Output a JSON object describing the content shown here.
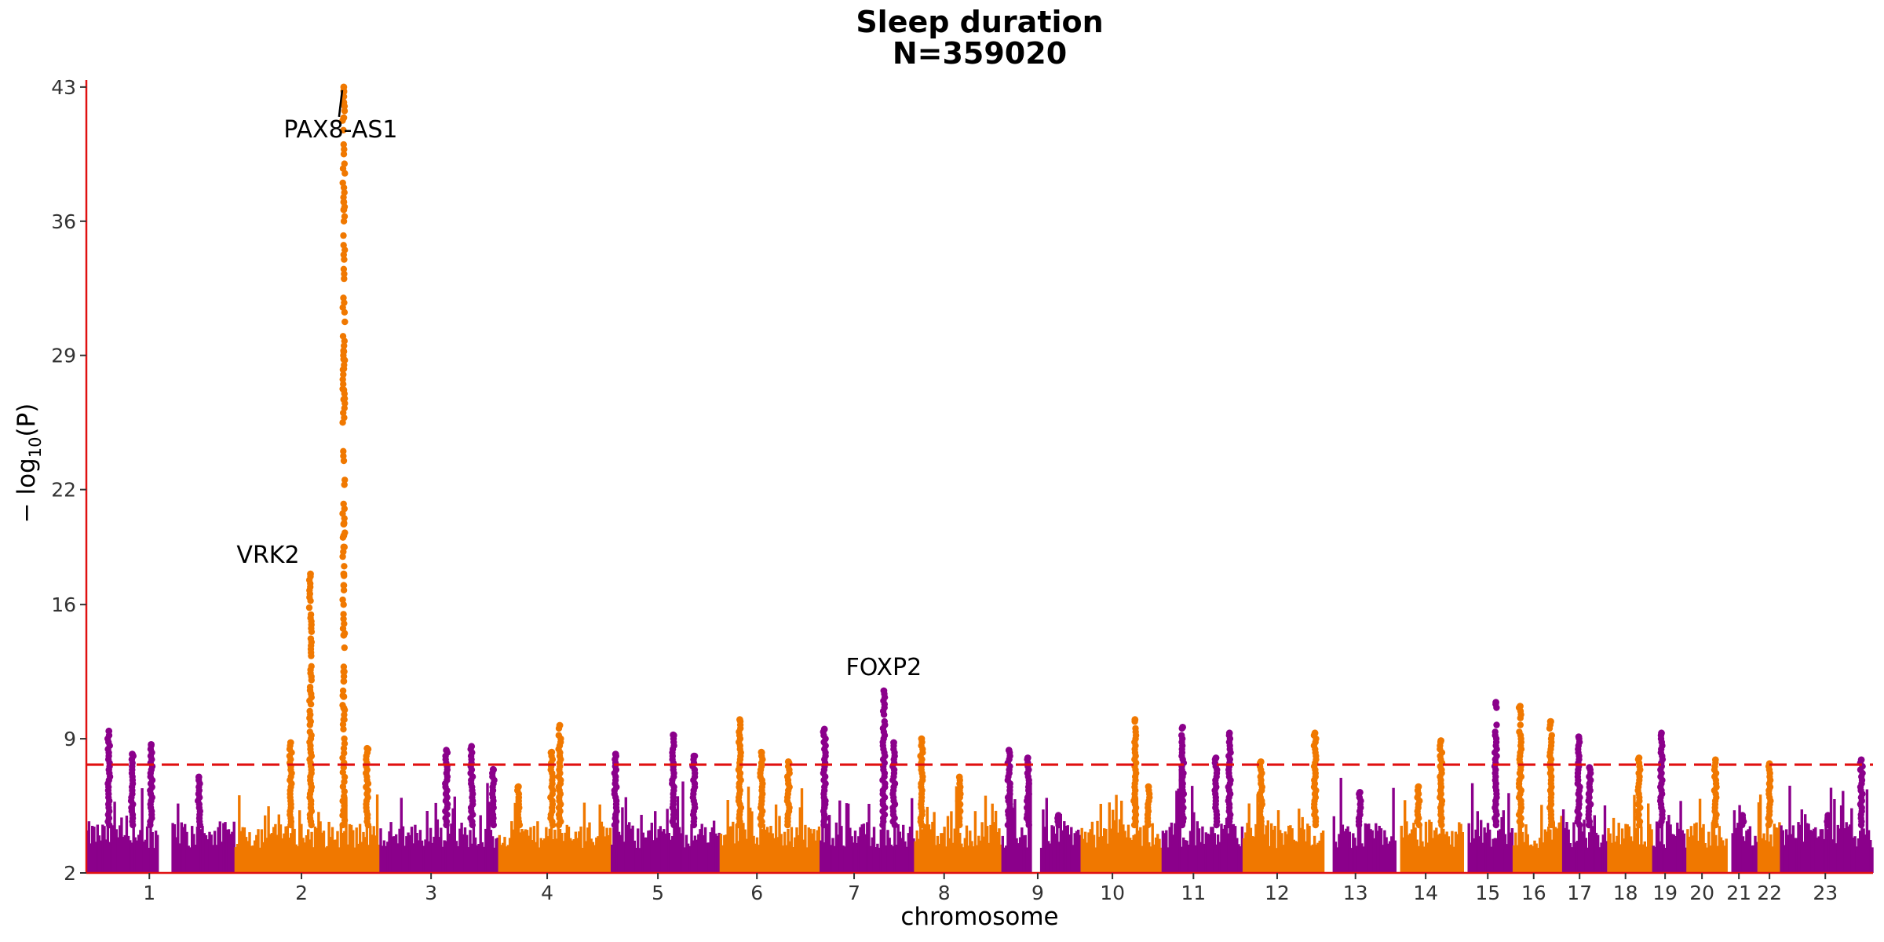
{
  "chart_data": {
    "type": "scatter",
    "subtype": "manhattan",
    "title": "Sleep duration",
    "subtitle": "N=359020",
    "xlabel": "chromosome",
    "ylabel": "− log10(P)",
    "ylabel_main": "− log",
    "ylabel_sub": "10",
    "ylabel_tail": "(P)",
    "ylim": [
      2,
      43.2
    ],
    "yticks": [
      2,
      9,
      16,
      22,
      29,
      36,
      43
    ],
    "significance_threshold": 7.65,
    "grid": false,
    "colors": {
      "odd": "#8b008b",
      "even": "#f07800",
      "axis": "#e01010",
      "threshold": "#e01010"
    },
    "chromosomes": [
      {
        "label": "1",
        "start": 0,
        "end": 8,
        "color": "purple",
        "peaks": [
          [
            2.5,
            9.4
          ],
          [
            7.2,
            8.7
          ],
          [
            5.1,
            8.2
          ]
        ]
      },
      {
        "label": "2",
        "start": 9.5,
        "end": 16.5,
        "color": "purple",
        "peaks": [
          [
            12.5,
            7.0
          ]
        ]
      },
      {
        "label": "2",
        "start": 16.5,
        "end": 32.6,
        "color": "orange",
        "peaks": [
          [
            24.9,
            17.6
          ],
          [
            22.7,
            8.8
          ],
          [
            28.6,
            43.0
          ],
          [
            31.2,
            8.5
          ]
        ]
      },
      {
        "label": "3",
        "start": 32.6,
        "end": 45.8,
        "color": "purple",
        "peaks": [
          [
            40.0,
            8.4
          ],
          [
            42.8,
            8.6
          ],
          [
            45.2,
            7.4
          ]
        ]
      },
      {
        "label": "4",
        "start": 45.8,
        "end": 58.3,
        "color": "orange",
        "peaks": [
          [
            52.6,
            9.7
          ],
          [
            51.7,
            8.3
          ],
          [
            48.0,
            6.5
          ]
        ]
      },
      {
        "label": "5",
        "start": 58.3,
        "end": 70.4,
        "color": "purple",
        "peaks": [
          [
            65.2,
            9.2
          ],
          [
            67.5,
            8.1
          ],
          [
            58.8,
            8.2
          ]
        ]
      },
      {
        "label": "6",
        "start": 70.4,
        "end": 81.5,
        "color": "orange",
        "peaks": [
          [
            72.6,
            10.0
          ],
          [
            75.0,
            8.3
          ],
          [
            78.0,
            7.8
          ]
        ]
      },
      {
        "label": "7",
        "start": 81.5,
        "end": 92.0,
        "color": "purple",
        "peaks": [
          [
            88.6,
            11.5
          ],
          [
            89.7,
            8.8
          ],
          [
            82.0,
            9.5
          ]
        ]
      },
      {
        "label": "8",
        "start": 92.0,
        "end": 101.7,
        "color": "orange",
        "peaks": [
          [
            92.8,
            9.0
          ],
          [
            97.0,
            7.0
          ]
        ]
      },
      {
        "label": "8",
        "start": 101.7,
        "end": 105.0,
        "color": "purple",
        "peaks": [
          [
            102.5,
            8.4
          ],
          [
            104.6,
            8.0
          ]
        ]
      },
      {
        "label": "9",
        "start": 106.0,
        "end": 110.5,
        "color": "purple",
        "peaks": [
          [
            108.0,
            5.0
          ]
        ]
      },
      {
        "label": "10",
        "start": 110.5,
        "end": 119.5,
        "color": "orange",
        "peaks": [
          [
            116.5,
            10.0
          ],
          [
            118.0,
            6.5
          ]
        ]
      },
      {
        "label": "11",
        "start": 119.5,
        "end": 128.5,
        "color": "purple",
        "peaks": [
          [
            121.8,
            9.6
          ],
          [
            127.0,
            9.3
          ],
          [
            125.5,
            8.0
          ]
        ]
      },
      {
        "label": "12",
        "start": 128.5,
        "end": 137.5,
        "color": "orange",
        "peaks": [
          [
            136.5,
            9.3
          ],
          [
            130.5,
            7.8
          ]
        ]
      },
      {
        "label": "13",
        "start": 138.5,
        "end": 145.5,
        "color": "purple",
        "peaks": [
          [
            141.5,
            6.2
          ]
        ]
      },
      {
        "label": "14",
        "start": 146.0,
        "end": 153.0,
        "color": "orange",
        "peaks": [
          [
            150.5,
            8.9
          ],
          [
            148.0,
            6.5
          ]
        ]
      },
      {
        "label": "15",
        "start": 153.5,
        "end": 158.5,
        "color": "purple",
        "peaks": [
          [
            156.6,
            10.9
          ]
        ]
      },
      {
        "label": "16",
        "start": 158.5,
        "end": 163.5,
        "color": "orange",
        "peaks": [
          [
            159.3,
            10.7
          ],
          [
            162.7,
            9.9
          ]
        ]
      },
      {
        "label": "16",
        "start": 163.5,
        "end": 164.0,
        "color": "orange",
        "peaks": []
      },
      {
        "label": "17",
        "start": 164.0,
        "end": 169.0,
        "color": "purple",
        "peaks": [
          [
            165.8,
            9.1
          ],
          [
            167.0,
            7.5
          ]
        ]
      },
      {
        "label": "18",
        "start": 169.0,
        "end": 174.0,
        "color": "orange",
        "peaks": [
          [
            172.5,
            8.0
          ]
        ]
      },
      {
        "label": "19",
        "start": 174.0,
        "end": 177.8,
        "color": "purple",
        "peaks": [
          [
            175.0,
            9.3
          ]
        ]
      },
      {
        "label": "20",
        "start": 177.8,
        "end": 182.3,
        "color": "orange",
        "peaks": [
          [
            181.0,
            7.9
          ]
        ]
      },
      {
        "label": "21",
        "start": 182.8,
        "end": 185.7,
        "color": "purple",
        "peaks": [
          [
            184.0,
            5.0
          ]
        ]
      },
      {
        "label": "22",
        "start": 185.7,
        "end": 188.2,
        "color": "orange",
        "peaks": [
          [
            187.0,
            7.7
          ]
        ]
      },
      {
        "label": "23",
        "start": 188.2,
        "end": 198.5,
        "color": "purple",
        "peaks": [
          [
            197.2,
            7.9
          ],
          [
            193.5,
            5.0
          ]
        ]
      }
    ],
    "xticks": [
      {
        "label": "1",
        "pos": 7.0
      },
      {
        "label": "2",
        "pos": 23.9
      },
      {
        "label": "3",
        "pos": 38.3
      },
      {
        "label": "4",
        "pos": 51.2
      },
      {
        "label": "5",
        "pos": 63.5
      },
      {
        "label": "6",
        "pos": 74.5
      },
      {
        "label": "7",
        "pos": 85.3
      },
      {
        "label": "8",
        "pos": 95.3
      },
      {
        "label": "9",
        "pos": 105.7
      },
      {
        "label": "10",
        "pos": 114.0
      },
      {
        "label": "11",
        "pos": 123.0
      },
      {
        "label": "12",
        "pos": 132.3
      },
      {
        "label": "13",
        "pos": 141.0
      },
      {
        "label": "14",
        "pos": 148.8
      },
      {
        "label": "15",
        "pos": 155.7
      },
      {
        "label": "16",
        "pos": 160.8
      },
      {
        "label": "17",
        "pos": 165.9
      },
      {
        "label": "18",
        "pos": 171.0
      },
      {
        "label": "19",
        "pos": 175.4
      },
      {
        "label": "20",
        "pos": 179.5
      },
      {
        "label": "21",
        "pos": 183.6
      },
      {
        "label": "22",
        "pos": 187.0
      },
      {
        "label": "23",
        "pos": 193.2
      }
    ],
    "xlim": [
      0,
      198.5
    ],
    "annotations": [
      {
        "text": "PAX8-AS1",
        "x": 28.6,
        "y": 43.0,
        "leader": true
      },
      {
        "text": "VRK2",
        "x": 24.9,
        "y": 17.6,
        "leader": false
      },
      {
        "text": "FOXP2",
        "x": 88.6,
        "y": 11.5,
        "leader": false
      }
    ]
  }
}
